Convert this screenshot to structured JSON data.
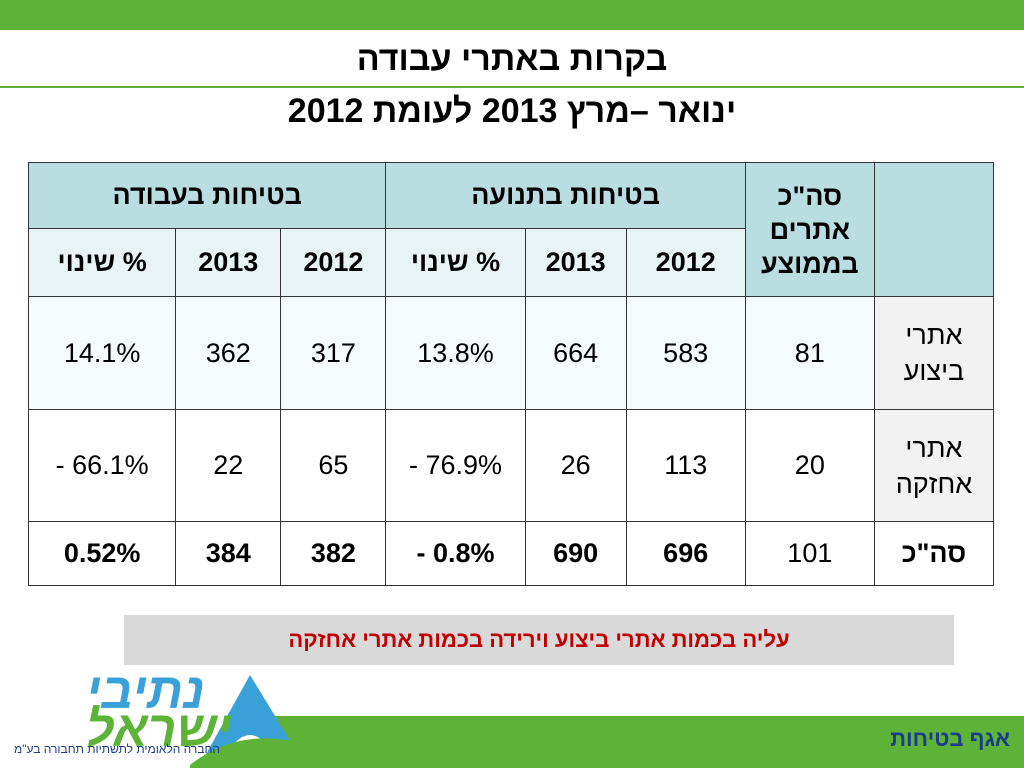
{
  "title": {
    "line1": "בקרות באתרי עבודה",
    "line2": "ינואר –מרץ 2013 לעומת 2012"
  },
  "table": {
    "groups": {
      "total_sites": "סה\"כ אתרים בממוצע",
      "traffic_safety": "בטיחות בתנועה",
      "work_safety": "בטיחות בעבודה"
    },
    "subheaders": {
      "y2012": "2012",
      "y2013": "2013",
      "change": "% שינוי"
    },
    "rows": [
      {
        "label": "אתרי ביצוע",
        "sites": "81",
        "traffic_2012": "583",
        "traffic_2013": "664",
        "traffic_change": "13.8%",
        "work_2012": "317",
        "work_2013": "362",
        "work_change": "14.1%"
      },
      {
        "label": "אתרי אחזקה",
        "sites": "20",
        "traffic_2012": "113",
        "traffic_2013": "26",
        "traffic_change": "- 76.9%",
        "work_2012": "65",
        "work_2013": "22",
        "work_change": "- 66.1%"
      },
      {
        "label": "סה\"כ",
        "sites": "101",
        "traffic_2012": "696",
        "traffic_2013": "690",
        "traffic_change": "- 0.8%",
        "work_2012": "382",
        "work_2013": "384",
        "work_change": "0.52%"
      }
    ]
  },
  "note": "עליה בכמות אתרי ביצוע וירידה בכמות אתרי אחזקה",
  "footer": {
    "department": "אגף בטיחות",
    "logo_line1": "נתיבי",
    "logo_line2": "ישראל",
    "logo_tagline": "החברה הלאומית לתשתיות תחבורה בע\"מ"
  },
  "colors": {
    "green": "#5cb338",
    "red_text": "#c00000",
    "header_fill": "#b9dde1",
    "blue": "#1a3d8a"
  }
}
